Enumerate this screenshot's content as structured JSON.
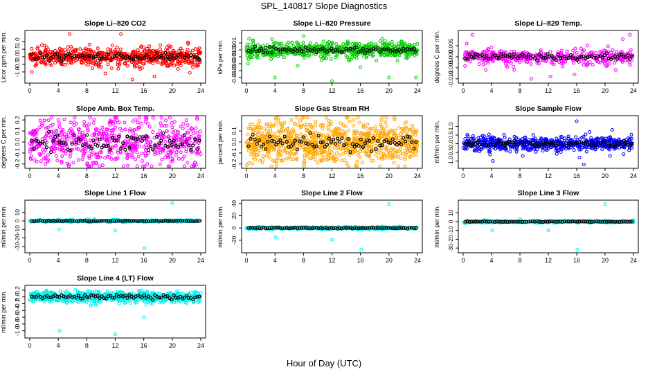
{
  "figure": {
    "title": "SPL_140817  Slope Diagnostics",
    "x_axis_title": "Hour of Day (UTC)"
  },
  "chart_data": [
    {
      "type": "scatter",
      "title": "Slope Li–820 CO2",
      "ylabel": "Licor ppm per min.",
      "xlim": [
        0,
        24
      ],
      "x_ticks": [
        0,
        4,
        8,
        12,
        16,
        20,
        24
      ],
      "ylim": [
        -1.6,
        1.6
      ],
      "y_ticks": [
        -1.0,
        -0.5,
        0.0,
        0.5,
        1.0
      ],
      "y_tick_labels": [
        "-1.0",
        "-0.5",
        "0.0",
        "0.5",
        "1.0"
      ],
      "color": "#ff0000",
      "center": 0.0,
      "spread": 0.22,
      "n": 620,
      "outliers": [
        [
          5.6,
          1.5
        ],
        [
          12.8,
          1.5
        ],
        [
          14.4,
          -1.5
        ],
        [
          10.6,
          -1.1
        ],
        [
          0.3,
          -1.0
        ],
        [
          17.5,
          -1.3
        ],
        [
          22.2,
          0.95
        ],
        [
          20.8,
          -0.8
        ]
      ]
    },
    {
      "type": "scatter",
      "title": "Slope Li–820 Pressure",
      "ylabel": "kPa per min.",
      "xlim": [
        0,
        24
      ],
      "x_ticks": [
        0,
        4,
        8,
        12,
        16,
        20,
        24
      ],
      "ylim": [
        -0.045,
        0.025
      ],
      "y_ticks": [
        -0.04,
        -0.03,
        -0.02,
        -0.01,
        0.0,
        0.01
      ],
      "y_tick_labels": [
        "-0.04",
        "-0.03",
        "-0.02",
        "-0.01",
        "0.00",
        "0.01"
      ],
      "color": "#00cc00",
      "center": 0.0,
      "spread": 0.004,
      "n": 620,
      "outliers": [
        [
          0.2,
          -0.02
        ],
        [
          4.0,
          -0.04
        ],
        [
          12.0,
          -0.045
        ],
        [
          16.0,
          -0.025
        ],
        [
          20.0,
          -0.04
        ],
        [
          23.8,
          -0.04
        ],
        [
          7.2,
          -0.023
        ],
        [
          8.0,
          0.02
        ]
      ]
    },
    {
      "type": "scatter",
      "title": "Slope Li–820 Temp.",
      "ylabel": "degrees C per min.",
      "xlim": [
        0,
        24
      ],
      "x_ticks": [
        0,
        4,
        8,
        12,
        16,
        20,
        24
      ],
      "ylim": [
        -0.011,
        0.011
      ],
      "y_ticks": [
        -0.01,
        -0.005,
        0.0,
        0.005
      ],
      "y_tick_labels": [
        "-0.010",
        "-0.005",
        "0.000",
        "0.005"
      ],
      "color": "#ff00ff",
      "center": 0.0,
      "spread": 0.0012,
      "n": 420,
      "outliers": [
        [
          1.3,
          0.01
        ],
        [
          0.5,
          0.006
        ],
        [
          3.2,
          -0.006
        ],
        [
          7.2,
          -0.006
        ],
        [
          9.6,
          -0.01
        ],
        [
          12.3,
          -0.009
        ],
        [
          15.7,
          -0.008
        ],
        [
          22.5,
          0.008
        ],
        [
          23.5,
          0.01
        ],
        [
          21.5,
          -0.006
        ]
      ]
    },
    {
      "type": "scatter",
      "title": "Slope Amb. Box Temp.",
      "ylabel": "degrees C per min.",
      "xlim": [
        0,
        24
      ],
      "x_ticks": [
        0,
        4,
        8,
        12,
        16,
        20,
        24
      ],
      "ylim": [
        -0.22,
        0.22
      ],
      "y_ticks": [
        -0.2,
        -0.1,
        0.0,
        0.1,
        0.2
      ],
      "y_tick_labels": [
        "-0.2",
        "-0.1",
        "0.0",
        "0.1",
        "0.2"
      ],
      "color": "#ff00ff",
      "center": 0.0,
      "spread": 0.08,
      "n": 620,
      "outliers": [
        [
          4.0,
          0.2
        ],
        [
          2.2,
          -0.2
        ],
        [
          23.0,
          -0.21
        ],
        [
          16.5,
          -0.2
        ],
        [
          12.0,
          0.18
        ]
      ]
    },
    {
      "type": "scatter",
      "title": "Slope Gas Stream RH",
      "ylabel": "percent per min.",
      "xlim": [
        0,
        24
      ],
      "x_ticks": [
        0,
        4,
        8,
        12,
        16,
        20,
        24
      ],
      "ylim": [
        -0.22,
        0.22
      ],
      "y_ticks": [
        -0.2,
        -0.1,
        0.0,
        0.1
      ],
      "y_tick_labels": [
        "-0.2",
        "-0.1",
        "0.0",
        "0.1"
      ],
      "color": "#ffa500",
      "center": 0.0,
      "spread": 0.07,
      "n": 900,
      "outliers": [
        [
          3.5,
          -0.22
        ],
        [
          4.4,
          -0.15
        ],
        [
          1.8,
          0.19
        ],
        [
          8.6,
          0.16
        ],
        [
          12.3,
          -0.15
        ],
        [
          19.5,
          0.18
        ],
        [
          17.3,
          -0.12
        ]
      ]
    },
    {
      "type": "scatter",
      "title": "Slope Sample Flow",
      "ylabel": "ml/min per min.",
      "xlim": [
        0,
        24
      ],
      "x_ticks": [
        0,
        4,
        8,
        12,
        16,
        20,
        24
      ],
      "ylim": [
        -1.3,
        1.5
      ],
      "y_ticks": [
        -1.0,
        -0.5,
        0.0,
        0.5,
        1.0
      ],
      "y_tick_labels": [
        "-1.0",
        "-0.5",
        "0.0",
        "0.5",
        "1.0"
      ],
      "color": "#0000ff",
      "center": 0.0,
      "spread": 0.15,
      "n": 620,
      "outliers": [
        [
          4.2,
          -1.0
        ],
        [
          16.0,
          1.3
        ],
        [
          17.0,
          -1.2
        ],
        [
          16.4,
          -0.8
        ],
        [
          21.0,
          0.8
        ],
        [
          20.7,
          -0.7
        ],
        [
          22.6,
          -0.6
        ],
        [
          8.4,
          -0.7
        ]
      ]
    },
    {
      "type": "scatter",
      "title": "Slope Line 1 Flow",
      "ylabel": "ml/min per min.",
      "xlim": [
        0,
        24
      ],
      "x_ticks": [
        0,
        4,
        8,
        12,
        16,
        20,
        24
      ],
      "ylim": [
        -35,
        22
      ],
      "y_ticks": [
        -30,
        -20,
        -10,
        0,
        10
      ],
      "y_tick_labels": [
        "-30",
        "-20",
        "-10",
        "0",
        "10"
      ],
      "color": "#00eeee",
      "center": 0.0,
      "spread": 0.5,
      "n": 320,
      "outliers": [
        [
          4.1,
          -10
        ],
        [
          12.0,
          -11
        ],
        [
          16.1,
          -32
        ],
        [
          20.0,
          21
        ],
        [
          8.0,
          2
        ]
      ]
    },
    {
      "type": "scatter",
      "title": "Slope Line 2 Flow",
      "ylabel": "ml/min per min.",
      "xlim": [
        0,
        24
      ],
      "x_ticks": [
        0,
        4,
        8,
        12,
        16,
        20,
        24
      ],
      "ylim": [
        -37,
        42
      ],
      "y_ticks": [
        -20,
        0,
        20,
        40
      ],
      "y_tick_labels": [
        "-20",
        "0",
        "20",
        "40"
      ],
      "color": "#00eeee",
      "center": 0.0,
      "spread": 0.8,
      "n": 320,
      "outliers": [
        [
          4.1,
          -15
        ],
        [
          12.0,
          -19
        ],
        [
          16.1,
          -35
        ],
        [
          20.0,
          39
        ],
        [
          0.0,
          0
        ]
      ]
    },
    {
      "type": "scatter",
      "title": "Slope Line 3 Flow",
      "ylabel": "ml/min per min.",
      "xlim": [
        0,
        24
      ],
      "x_ticks": [
        0,
        4,
        8,
        12,
        16,
        20,
        24
      ],
      "ylim": [
        -33,
        22
      ],
      "y_ticks": [
        -30,
        -20,
        -10,
        0,
        10
      ],
      "y_tick_labels": [
        "-30",
        "-20",
        "-10",
        "0",
        "10"
      ],
      "color": "#00eeee",
      "center": 0.0,
      "spread": 0.5,
      "n": 320,
      "outliers": [
        [
          4.1,
          -10
        ],
        [
          12.0,
          -10
        ],
        [
          16.1,
          -32
        ],
        [
          20.0,
          20
        ],
        [
          8.0,
          3
        ]
      ]
    },
    {
      "type": "scatter",
      "title": "Slope Line 4 (LT) Flow",
      "ylabel": "ml/min per min.",
      "xlim": [
        0,
        24
      ],
      "x_ticks": [
        0,
        4,
        8,
        12,
        16,
        20,
        24
      ],
      "ylim": [
        -1.15,
        0.28
      ],
      "y_ticks": [
        -1.0,
        -0.8,
        -0.6,
        -0.4,
        -0.2,
        0.0,
        0.2
      ],
      "y_tick_labels": [
        "-1.0",
        "-0.8",
        "-0.6",
        "-0.4",
        "-0.2",
        "0.0",
        "0.2"
      ],
      "color": "#00eeee",
      "center": 0.0,
      "spread": 0.06,
      "n": 620,
      "outliers": [
        [
          4.2,
          -1.0
        ],
        [
          12.0,
          -1.1
        ],
        [
          16.0,
          -0.6
        ],
        [
          12.3,
          0.15
        ],
        [
          7.5,
          -0.13
        ]
      ]
    }
  ]
}
